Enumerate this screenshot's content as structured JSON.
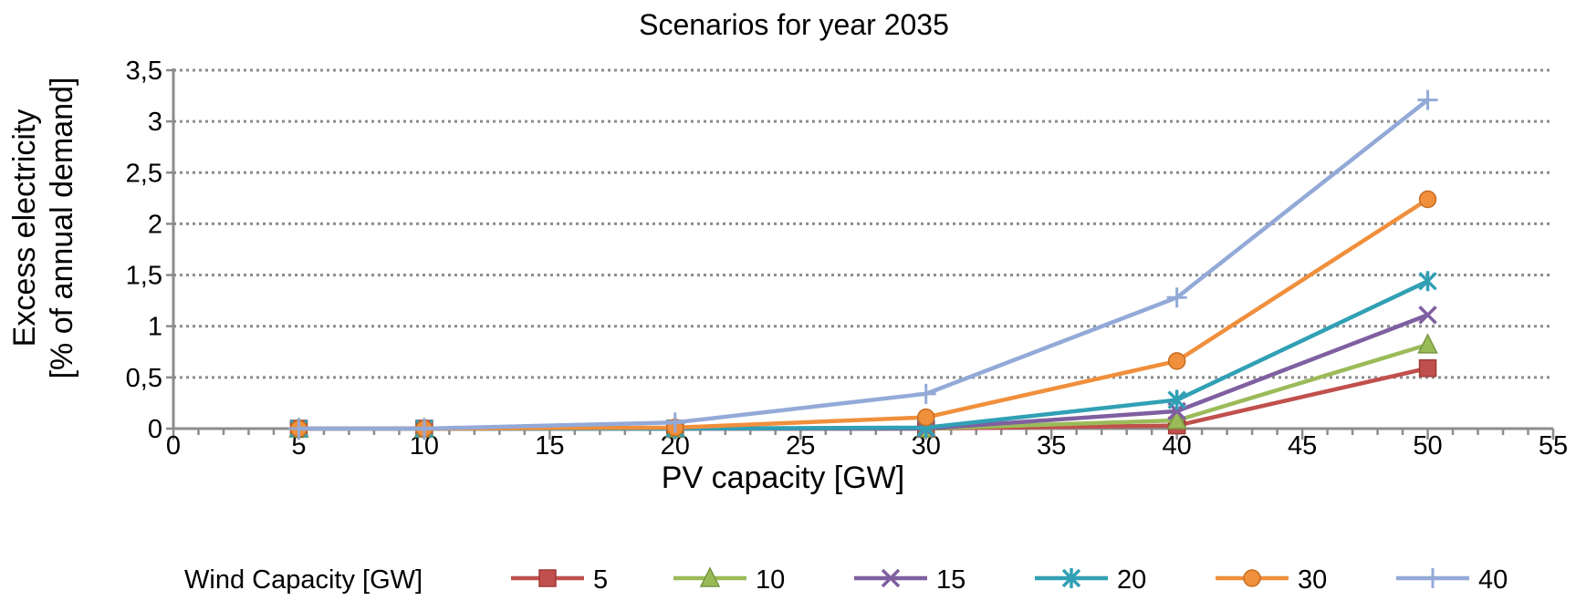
{
  "chart_data": {
    "type": "line",
    "title": "Scenarios for year 2035",
    "xlabel": "PV capacity [GW]",
    "ylabel": [
      "Excess electricity",
      "[% of  annual demand]"
    ],
    "xlim": [
      0,
      55
    ],
    "ylim": [
      0,
      3.5
    ],
    "x_ticks": [
      "0",
      "5",
      "10",
      "15",
      "20",
      "25",
      "30",
      "35",
      "40",
      "45",
      "50",
      "55"
    ],
    "y_ticks": [
      "0",
      "0,5",
      "1",
      "1,5",
      "2",
      "2,5",
      "3",
      "3,5"
    ],
    "grid": true,
    "legend_title": "Wind Capacity [GW]",
    "legend_position": "bottom",
    "x": [
      5,
      10,
      20,
      30,
      40,
      50
    ],
    "series": [
      {
        "name": "5",
        "color": "#c0504d",
        "marker": "square",
        "values": [
          0,
          0,
          0,
          0,
          0.03,
          0.59
        ]
      },
      {
        "name": "10",
        "color": "#9bbb59",
        "marker": "triangle",
        "values": [
          0,
          0,
          0,
          0,
          0.08,
          0.82
        ]
      },
      {
        "name": "15",
        "color": "#7f5fa0",
        "marker": "x",
        "values": [
          0,
          0,
          0,
          0,
          0.17,
          1.11
        ]
      },
      {
        "name": "20",
        "color": "#31a0b5",
        "marker": "star",
        "values": [
          0,
          0,
          0,
          0.01,
          0.28,
          1.44
        ]
      },
      {
        "name": "30",
        "color": "#f08f3c",
        "marker": "circle",
        "values": [
          0,
          0,
          0.01,
          0.11,
          0.66,
          2.24
        ]
      },
      {
        "name": "40",
        "color": "#93aad8",
        "marker": "plus",
        "values": [
          0,
          0,
          0.06,
          0.34,
          1.28,
          3.21
        ]
      }
    ]
  }
}
